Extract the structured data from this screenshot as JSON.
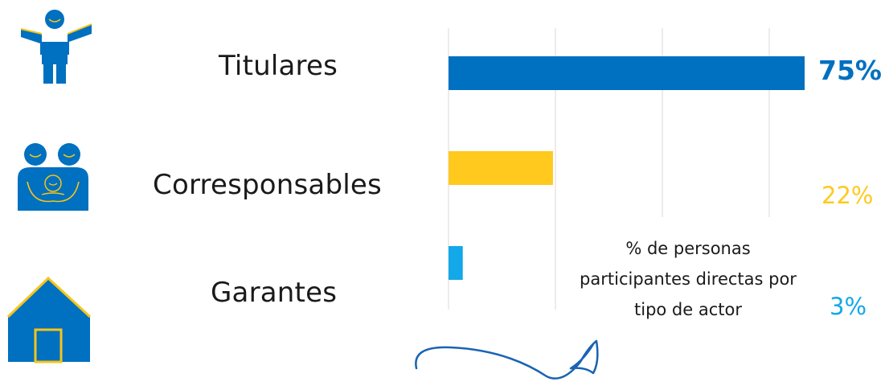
{
  "colors": {
    "titulares": "#0070C0",
    "corresponsables": "#FFC91E",
    "garantes": "#13A8E8",
    "icon_blue": "#0070C0",
    "icon_outline": "#F5C518",
    "grid": "#d9d9d9",
    "arrow": "#1a63b4"
  },
  "icons": [
    "person-arms-open-icon",
    "family-icon",
    "house-icon"
  ],
  "caption": "% de personas participantes directas por tipo de actor",
  "chart_data": {
    "type": "bar",
    "orientation": "horizontal",
    "categories": [
      "Titulares",
      "Corresponsables",
      "Garantes"
    ],
    "values": [
      75,
      22,
      3
    ],
    "value_labels": [
      "75%",
      "22%",
      "3%"
    ],
    "xlim": [
      0,
      75
    ],
    "grid": true,
    "title": "",
    "xlabel": "",
    "ylabel": ""
  }
}
